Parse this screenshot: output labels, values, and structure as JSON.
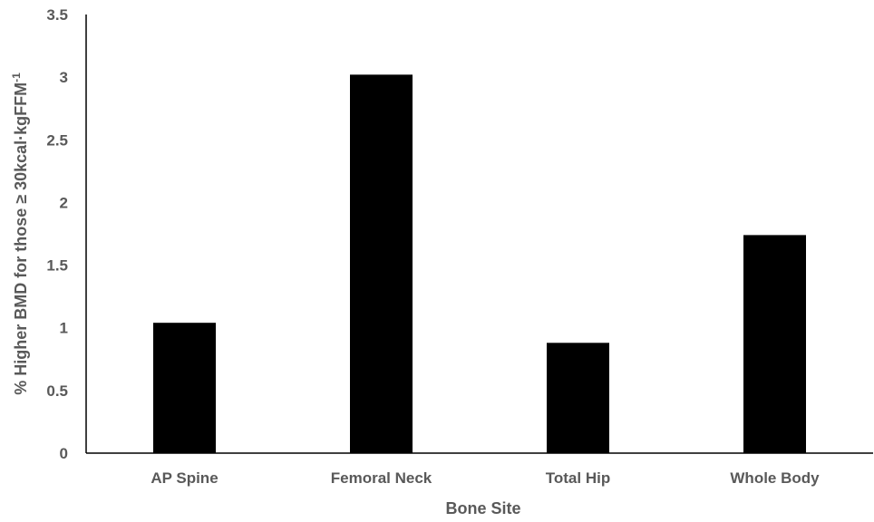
{
  "chart_data": {
    "type": "bar",
    "categories": [
      "AP Spine",
      "Femoral Neck",
      "Total Hip",
      "Whole Body"
    ],
    "values": [
      1.04,
      3.02,
      0.88,
      1.74
    ],
    "title": "",
    "xlabel": "Bone Site",
    "ylabel": {
      "text": "% Higher BMD for those ≥ 30kcal·kgFFM",
      "superscript": "-1"
    },
    "ylim": [
      0,
      3.5
    ],
    "yticks": [
      "0",
      "0.5",
      "1",
      "1.5",
      "2",
      "2.5",
      "3",
      "3.5"
    ],
    "bar_color": "#000000",
    "text_color": "#595959",
    "grid": false,
    "legend": "none"
  }
}
